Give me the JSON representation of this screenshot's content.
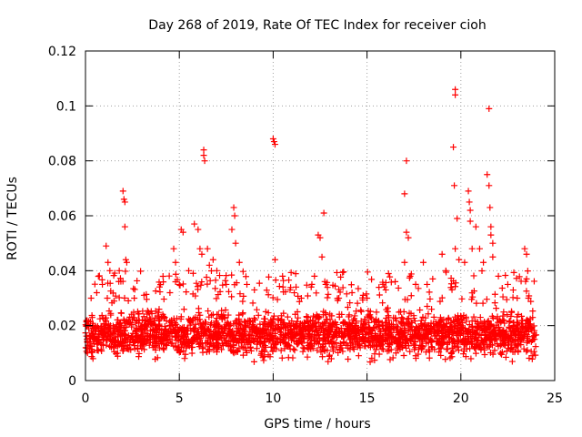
{
  "chart_data": {
    "type": "scatter",
    "title": "Day 268 of 2019, Rate Of TEC Index for receiver cioh",
    "xlabel": "GPS time / hours",
    "ylabel": "ROTI / TECUs",
    "xlim": [
      0,
      25
    ],
    "ylim": [
      0,
      0.12
    ],
    "xticks": [
      0,
      5,
      10,
      15,
      20,
      25
    ],
    "xtick_labels": [
      "0",
      "5",
      "10",
      "15",
      "20",
      "25"
    ],
    "yticks": [
      0,
      0.02,
      0.04,
      0.06,
      0.08,
      0.1,
      0.12
    ],
    "ytick_labels": [
      "0",
      "0.02",
      "0.04",
      "0.06",
      "0.08",
      "0.1",
      "0.12"
    ],
    "grid": true,
    "legend": "none",
    "marker": "+",
    "color": "#ff0000",
    "series": [
      {
        "name": "ROTI",
        "x_range": [
          0,
          24
        ],
        "baseline_band": [
          0.006,
          0.028
        ],
        "notable_points": [
          {
            "x": 0.3,
            "y": 0.03
          },
          {
            "x": 0.6,
            "y": 0.032
          },
          {
            "x": 0.9,
            "y": 0.035
          },
          {
            "x": 1.1,
            "y": 0.049
          },
          {
            "x": 1.2,
            "y": 0.043
          },
          {
            "x": 1.3,
            "y": 0.04
          },
          {
            "x": 1.8,
            "y": 0.04
          },
          {
            "x": 2.0,
            "y": 0.069
          },
          {
            "x": 2.05,
            "y": 0.066
          },
          {
            "x": 2.1,
            "y": 0.065
          },
          {
            "x": 2.1,
            "y": 0.056
          },
          {
            "x": 2.15,
            "y": 0.044
          },
          {
            "x": 2.2,
            "y": 0.043
          },
          {
            "x": 2.6,
            "y": 0.03
          },
          {
            "x": 4.5,
            "y": 0.032
          },
          {
            "x": 4.7,
            "y": 0.048
          },
          {
            "x": 4.8,
            "y": 0.043
          },
          {
            "x": 5.0,
            "y": 0.035
          },
          {
            "x": 5.1,
            "y": 0.055
          },
          {
            "x": 5.2,
            "y": 0.054
          },
          {
            "x": 5.5,
            "y": 0.04
          },
          {
            "x": 5.8,
            "y": 0.057
          },
          {
            "x": 6.0,
            "y": 0.055
          },
          {
            "x": 6.1,
            "y": 0.048
          },
          {
            "x": 6.2,
            "y": 0.046
          },
          {
            "x": 6.3,
            "y": 0.084
          },
          {
            "x": 6.3,
            "y": 0.082
          },
          {
            "x": 6.35,
            "y": 0.08
          },
          {
            "x": 6.5,
            "y": 0.048
          },
          {
            "x": 6.6,
            "y": 0.042
          },
          {
            "x": 6.8,
            "y": 0.044
          },
          {
            "x": 7.0,
            "y": 0.04
          },
          {
            "x": 7.5,
            "y": 0.035
          },
          {
            "x": 7.8,
            "y": 0.055
          },
          {
            "x": 7.9,
            "y": 0.063
          },
          {
            "x": 7.95,
            "y": 0.06
          },
          {
            "x": 8.0,
            "y": 0.05
          },
          {
            "x": 8.2,
            "y": 0.043
          },
          {
            "x": 8.6,
            "y": 0.035
          },
          {
            "x": 9.0,
            "y": 0.033
          },
          {
            "x": 10.0,
            "y": 0.088
          },
          {
            "x": 10.05,
            "y": 0.087
          },
          {
            "x": 10.1,
            "y": 0.086
          },
          {
            "x": 10.1,
            "y": 0.044
          },
          {
            "x": 10.5,
            "y": 0.038
          },
          {
            "x": 10.9,
            "y": 0.033
          },
          {
            "x": 11.5,
            "y": 0.03
          },
          {
            "x": 12.2,
            "y": 0.038
          },
          {
            "x": 12.4,
            "y": 0.053
          },
          {
            "x": 12.5,
            "y": 0.052
          },
          {
            "x": 12.6,
            "y": 0.045
          },
          {
            "x": 12.7,
            "y": 0.061
          },
          {
            "x": 12.8,
            "y": 0.035
          },
          {
            "x": 13.5,
            "y": 0.03
          },
          {
            "x": 14.2,
            "y": 0.032
          },
          {
            "x": 15.0,
            "y": 0.03
          },
          {
            "x": 16.0,
            "y": 0.033
          },
          {
            "x": 16.5,
            "y": 0.036
          },
          {
            "x": 17.0,
            "y": 0.068
          },
          {
            "x": 17.1,
            "y": 0.08
          },
          {
            "x": 17.1,
            "y": 0.054
          },
          {
            "x": 17.2,
            "y": 0.052
          },
          {
            "x": 17.0,
            "y": 0.043
          },
          {
            "x": 17.3,
            "y": 0.038
          },
          {
            "x": 18.0,
            "y": 0.043
          },
          {
            "x": 18.2,
            "y": 0.035
          },
          {
            "x": 18.5,
            "y": 0.037
          },
          {
            "x": 19.0,
            "y": 0.046
          },
          {
            "x": 19.2,
            "y": 0.04
          },
          {
            "x": 19.6,
            "y": 0.085
          },
          {
            "x": 19.7,
            "y": 0.106
          },
          {
            "x": 19.7,
            "y": 0.104
          },
          {
            "x": 19.65,
            "y": 0.071
          },
          {
            "x": 19.8,
            "y": 0.059
          },
          {
            "x": 19.7,
            "y": 0.048
          },
          {
            "x": 19.9,
            "y": 0.044
          },
          {
            "x": 20.2,
            "y": 0.043
          },
          {
            "x": 20.4,
            "y": 0.069
          },
          {
            "x": 20.45,
            "y": 0.065
          },
          {
            "x": 20.5,
            "y": 0.062
          },
          {
            "x": 20.5,
            "y": 0.058
          },
          {
            "x": 20.6,
            "y": 0.048
          },
          {
            "x": 20.8,
            "y": 0.056
          },
          {
            "x": 21.0,
            "y": 0.048
          },
          {
            "x": 21.2,
            "y": 0.043
          },
          {
            "x": 21.4,
            "y": 0.075
          },
          {
            "x": 21.5,
            "y": 0.099
          },
          {
            "x": 21.5,
            "y": 0.071
          },
          {
            "x": 21.55,
            "y": 0.063
          },
          {
            "x": 21.6,
            "y": 0.056
          },
          {
            "x": 21.6,
            "y": 0.053
          },
          {
            "x": 21.7,
            "y": 0.05
          },
          {
            "x": 21.7,
            "y": 0.045
          },
          {
            "x": 22.0,
            "y": 0.038
          },
          {
            "x": 22.5,
            "y": 0.035
          },
          {
            "x": 23.0,
            "y": 0.03
          },
          {
            "x": 23.4,
            "y": 0.048
          },
          {
            "x": 23.5,
            "y": 0.046
          },
          {
            "x": 23.5,
            "y": 0.037
          },
          {
            "x": 23.6,
            "y": 0.03
          }
        ]
      }
    ]
  }
}
